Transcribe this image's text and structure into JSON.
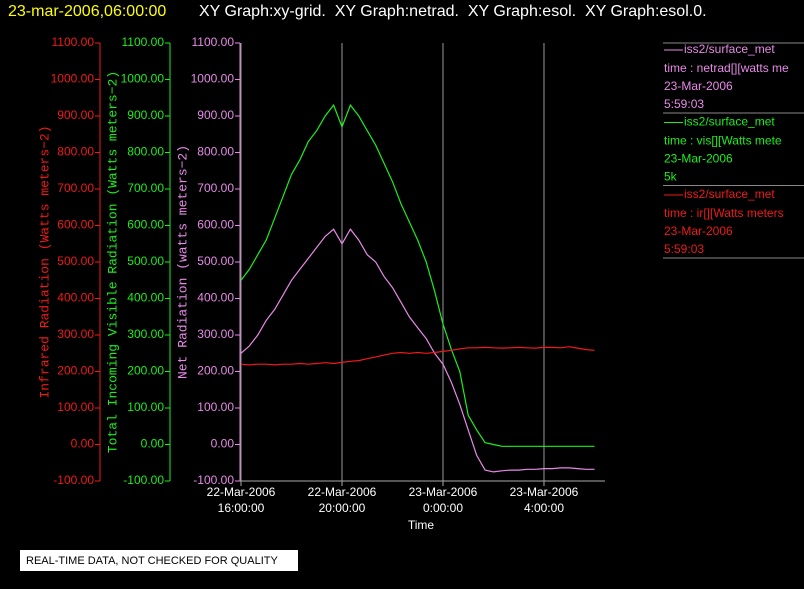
{
  "chart_data": {
    "type": "line",
    "title": "23-mar-2006,06:00:00",
    "subtitle": "XY Graph:xy-grid.  XY Graph:netrad.  XY Graph:esol.  XY Graph:esol.0.",
    "xlabel": "Time",
    "ylabel": "Net Radiation (watts meters−2)",
    "y2label": "Total Incoming Visible Radiation (Watts meters−2)",
    "y3label": "Infrared Radiation (Watts meters−2)",
    "note": "REAL-TIME DATA, NOT CHECKED FOR QUALITY",
    "xlim": [
      "2006-03-22T16:00:00",
      "2006-03-23T06:25:00"
    ],
    "xticks": [
      {
        "value": "2006-03-22T16:00:00",
        "label": [
          "22-Mar-2006",
          "16:00:00"
        ]
      },
      {
        "value": "2006-03-22T20:00:00",
        "label": [
          "22-Mar-2006",
          "20:00:00"
        ]
      },
      {
        "value": "2006-03-23T00:00:00",
        "label": [
          "23-Mar-2006",
          "0:00:00"
        ]
      },
      {
        "value": "2006-03-23T04:00:00",
        "label": [
          "23-Mar-2006",
          "4:00:00"
        ]
      }
    ],
    "ylim": [
      -100,
      1100
    ],
    "yticks": [
      {
        "value": -100,
        "label": "-100.00"
      },
      {
        "value": 0,
        "label": "0.00"
      },
      {
        "value": 100,
        "label": "100.00"
      },
      {
        "value": 200,
        "label": "200.00"
      },
      {
        "value": 300,
        "label": "300.00"
      },
      {
        "value": 400,
        "label": "400.00"
      },
      {
        "value": 500,
        "label": "500.00"
      },
      {
        "value": 600,
        "label": "600.00"
      },
      {
        "value": 700,
        "label": "700.00"
      },
      {
        "value": 800,
        "label": "800.00"
      },
      {
        "value": 900,
        "label": "900.00"
      },
      {
        "value": 1000,
        "label": "1000.00"
      },
      {
        "value": 1100,
        "label": "1100.00"
      }
    ],
    "y2lim": [
      -100,
      1100
    ],
    "y2ticks": [
      {
        "value": -100,
        "label": "-100.00"
      },
      {
        "value": 0,
        "label": "0.00"
      },
      {
        "value": 100,
        "label": "100.00"
      },
      {
        "value": 200,
        "label": "200.00"
      },
      {
        "value": 300,
        "label": "300.00"
      },
      {
        "value": 400,
        "label": "400.00"
      },
      {
        "value": 500,
        "label": "500.00"
      },
      {
        "value": 600,
        "label": "600.00"
      },
      {
        "value": 700,
        "label": "700.00"
      },
      {
        "value": 800,
        "label": "800.00"
      },
      {
        "value": 900,
        "label": "900.00"
      },
      {
        "value": 1000,
        "label": "1000.00"
      },
      {
        "value": 1100,
        "label": "1100.00"
      }
    ],
    "y3lim": [
      -100,
      1100
    ],
    "y3ticks": [
      {
        "value": -100,
        "label": "-100.00"
      },
      {
        "value": 0,
        "label": "0.00"
      },
      {
        "value": 100,
        "label": "100.00"
      },
      {
        "value": 200,
        "label": "200.00"
      },
      {
        "value": 300,
        "label": "300.00"
      },
      {
        "value": 400,
        "label": "400.00"
      },
      {
        "value": 500,
        "label": "500.00"
      },
      {
        "value": 600,
        "label": "600.00"
      },
      {
        "value": 700,
        "label": "700.00"
      },
      {
        "value": 800,
        "label": "800.00"
      },
      {
        "value": 900,
        "label": "900.00"
      },
      {
        "value": 1000,
        "label": "1000.00"
      },
      {
        "value": 1100,
        "label": "1100.00"
      }
    ],
    "x": [
      "2006-03-22T16:00:00",
      "2006-03-22T16:20:00",
      "2006-03-22T16:40:00",
      "2006-03-22T17:00:00",
      "2006-03-22T17:20:00",
      "2006-03-22T17:40:00",
      "2006-03-22T18:00:00",
      "2006-03-22T18:20:00",
      "2006-03-22T18:40:00",
      "2006-03-22T19:00:00",
      "2006-03-22T19:20:00",
      "2006-03-22T19:40:00",
      "2006-03-22T20:00:00",
      "2006-03-22T20:20:00",
      "2006-03-22T20:40:00",
      "2006-03-22T21:00:00",
      "2006-03-22T21:20:00",
      "2006-03-22T21:40:00",
      "2006-03-22T22:00:00",
      "2006-03-22T22:20:00",
      "2006-03-22T22:40:00",
      "2006-03-22T23:00:00",
      "2006-03-22T23:20:00",
      "2006-03-22T23:40:00",
      "2006-03-23T00:00:00",
      "2006-03-23T00:20:00",
      "2006-03-23T00:40:00",
      "2006-03-23T01:00:00",
      "2006-03-23T01:20:00",
      "2006-03-23T01:40:00",
      "2006-03-23T02:00:00",
      "2006-03-23T02:20:00",
      "2006-03-23T02:40:00",
      "2006-03-23T03:00:00",
      "2006-03-23T03:20:00",
      "2006-03-23T03:40:00",
      "2006-03-23T04:00:00",
      "2006-03-23T04:20:00",
      "2006-03-23T04:40:00",
      "2006-03-23T05:00:00",
      "2006-03-23T05:20:00",
      "2006-03-23T05:40:00",
      "2006-03-23T06:00:00"
    ],
    "grid": true,
    "series": [
      {
        "name": "iss2/surface_met",
        "legend_label": "time : netrad[][watts me",
        "legend_date": "23-Mar-2006",
        "legend_time": "5:59:03",
        "color": "#e889e8",
        "axis": "y",
        "values": [
          250,
          270,
          300,
          340,
          370,
          410,
          450,
          480,
          510,
          540,
          570,
          590,
          550,
          590,
          560,
          520,
          500,
          460,
          430,
          390,
          350,
          320,
          290,
          250,
          220,
          170,
          110,
          40,
          -30,
          -70,
          -75,
          -72,
          -70,
          -70,
          -68,
          -68,
          -66,
          -66,
          -64,
          -64,
          -66,
          -68,
          -68
        ]
      },
      {
        "name": "iss2/surface_met",
        "legend_label": "time : vis[][Watts mete",
        "legend_date": "23-Mar-2006",
        "legend_time": "5k",
        "color": "#1aef1a",
        "axis": "y2",
        "values": [
          450,
          480,
          520,
          560,
          620,
          680,
          740,
          780,
          830,
          860,
          900,
          930,
          870,
          930,
          900,
          860,
          820,
          770,
          720,
          660,
          610,
          560,
          500,
          420,
          330,
          260,
          200,
          80,
          40,
          5,
          0,
          -5,
          -5,
          -5,
          -5,
          -5,
          -5,
          -5,
          -5,
          -5,
          -5,
          -5,
          -5
        ]
      },
      {
        "name": "iss2/surface_met",
        "legend_label": "time : ir[][Watts meters",
        "legend_date": "23-Mar-2006",
        "legend_time": "5:59:03",
        "color": "#f01a1a",
        "axis": "y3",
        "values": [
          220,
          218,
          220,
          220,
          218,
          220,
          220,
          222,
          220,
          222,
          224,
          222,
          225,
          228,
          230,
          235,
          240,
          245,
          250,
          252,
          250,
          252,
          250,
          252,
          255,
          258,
          262,
          265,
          265,
          266,
          265,
          264,
          265,
          266,
          265,
          264,
          266,
          266,
          265,
          268,
          264,
          260,
          258
        ]
      }
    ]
  }
}
